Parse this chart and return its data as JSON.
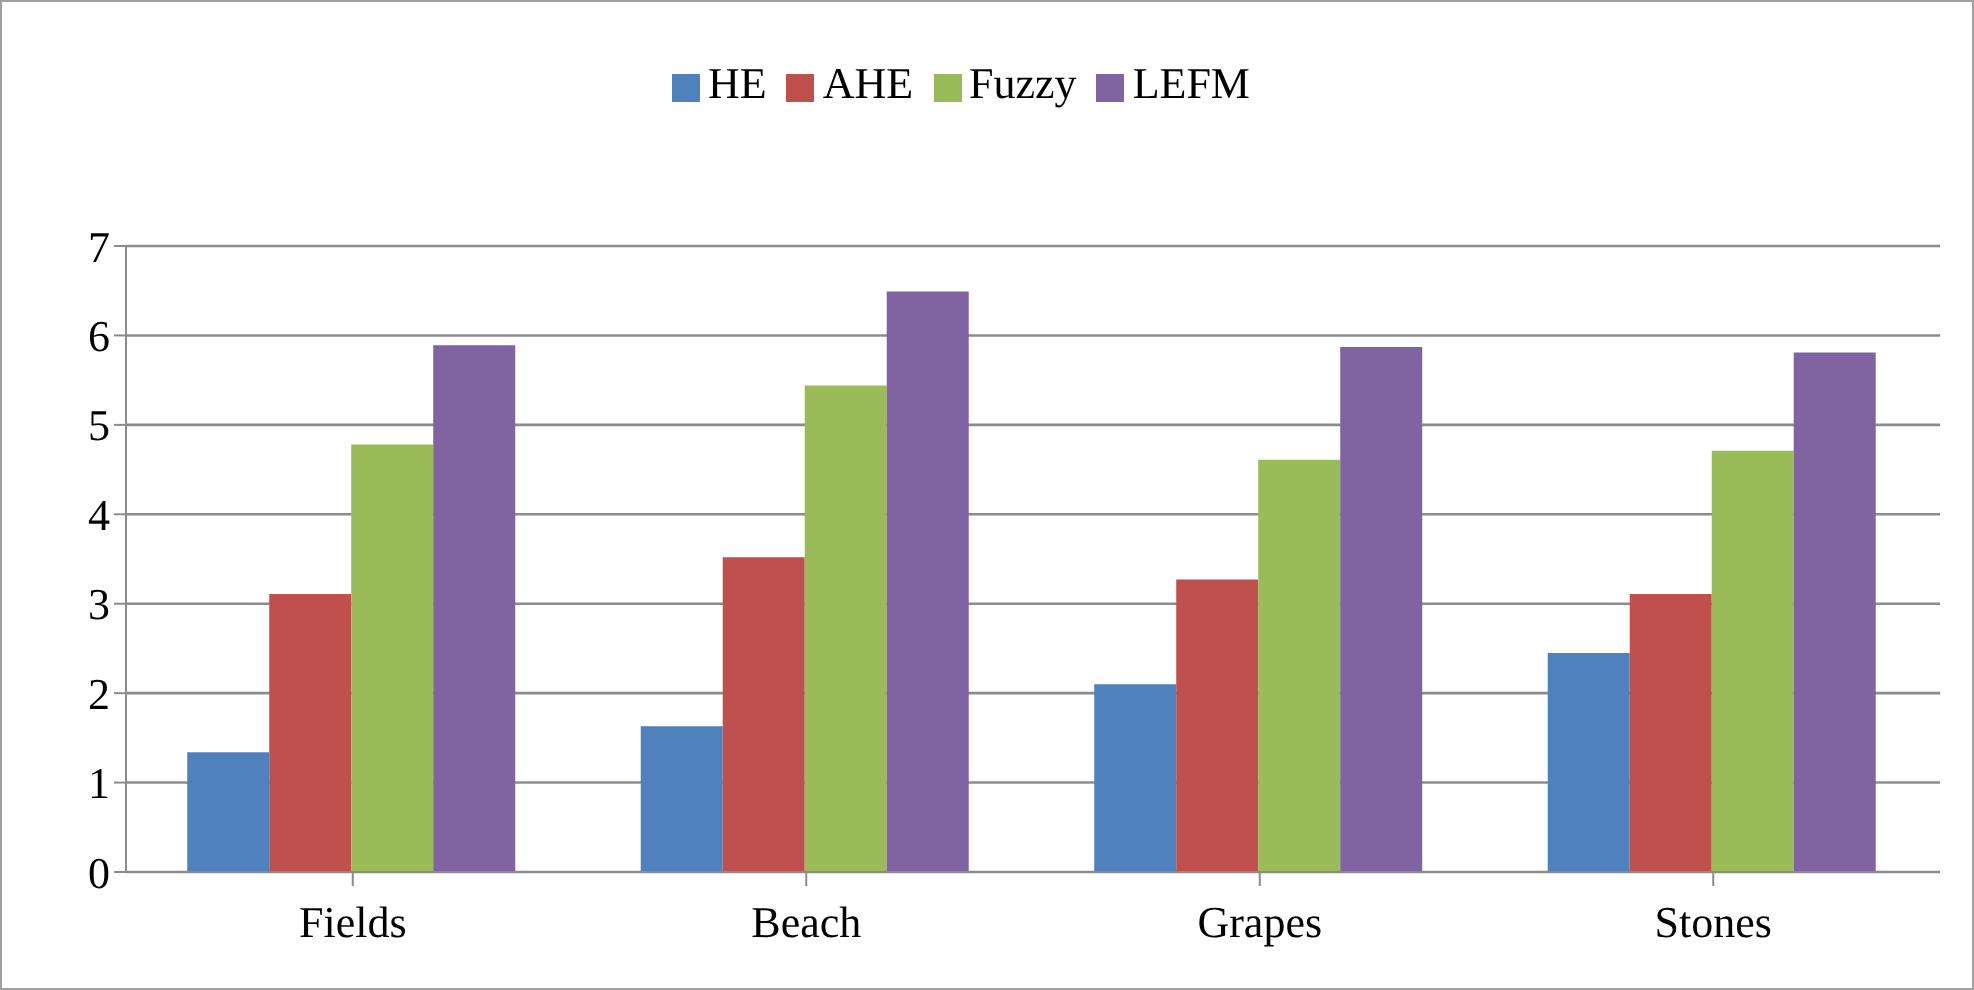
{
  "chart_data": {
    "type": "bar",
    "categories": [
      "Fields",
      "Beach",
      "Grapes",
      "Stones"
    ],
    "series": [
      {
        "name": "HE",
        "color": "#4f81bd",
        "values": [
          1.34,
          1.63,
          2.1,
          2.45
        ]
      },
      {
        "name": "AHE",
        "color": "#c0504d",
        "values": [
          3.11,
          3.52,
          3.27,
          3.11
        ]
      },
      {
        "name": "Fuzzy",
        "color": "#9bbb59",
        "values": [
          4.78,
          5.44,
          4.61,
          4.71
        ]
      },
      {
        "name": "LEFM",
        "color": "#8064a2",
        "values": [
          5.89,
          6.49,
          5.87,
          5.81
        ]
      }
    ],
    "ylim": [
      0,
      7
    ],
    "yticks": [
      0,
      1,
      2,
      3,
      4,
      5,
      6,
      7
    ],
    "grid": "y",
    "legend": "top"
  }
}
